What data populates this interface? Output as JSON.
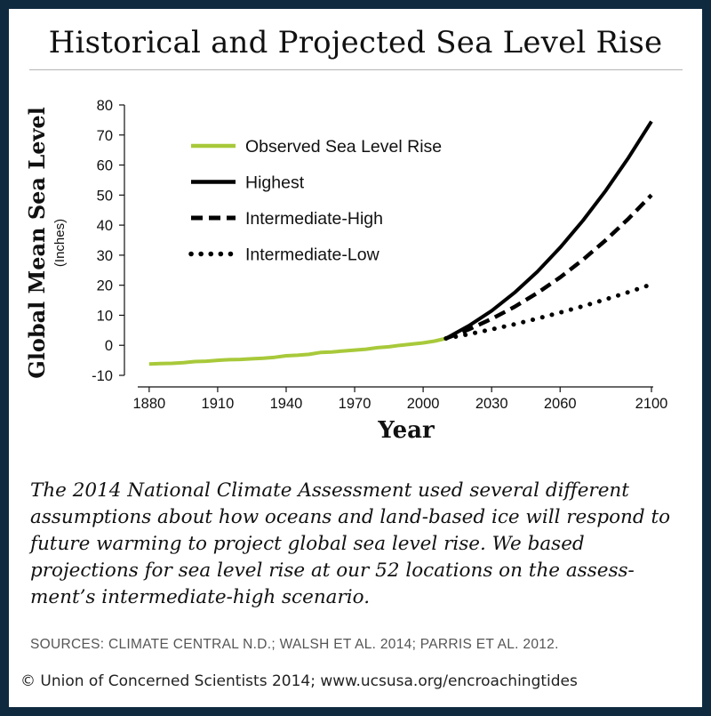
{
  "page": {
    "title": "Historical and Projected Sea Level Rise",
    "caption": "The 2014 National Climate Assessment used several different assumptions about how oceans and land-based ice will respond to future warming to project global sea level rise. We based projections for sea level rise at our 52 locations on the assess-ment’s intermediate-high scenario.",
    "sources": "SOURCES: CLIMATE CENTRAL N.D.; WALSH ET AL. 2014; PARRIS ET AL. 2012.",
    "copyright": "© Union of Concerned Scientists 2014; www.ucsusa.org/encroachingtides",
    "background_color": "#0f2a3f"
  },
  "chart_data": {
    "type": "line",
    "xlabel": "Year",
    "ylabel": "Global Mean Sea Level",
    "ylabel_unit": "(Inches)",
    "xlim": [
      1875,
      2100
    ],
    "ylim": [
      -10,
      80
    ],
    "xticks": [
      1880,
      1910,
      1940,
      1970,
      2000,
      2030,
      2060,
      2100
    ],
    "yticks": [
      -10,
      0,
      10,
      20,
      30,
      40,
      50,
      60,
      70,
      80
    ],
    "grid": false,
    "legend_position": "top-left",
    "series": [
      {
        "name": "Observed Sea Level Rise",
        "color": "#a8c93a",
        "style": "solid",
        "x": [
          1880,
          1885,
          1890,
          1895,
          1900,
          1905,
          1910,
          1915,
          1920,
          1925,
          1930,
          1935,
          1940,
          1945,
          1950,
          1955,
          1960,
          1965,
          1970,
          1975,
          1980,
          1985,
          1990,
          1995,
          2000,
          2005,
          2010
        ],
        "y": [
          -6.2,
          -6.1,
          -6.0,
          -5.8,
          -5.4,
          -5.3,
          -5.0,
          -4.8,
          -4.7,
          -4.5,
          -4.3,
          -4.0,
          -3.5,
          -3.3,
          -3.0,
          -2.4,
          -2.2,
          -1.9,
          -1.6,
          -1.3,
          -0.8,
          -0.5,
          0,
          0.4,
          0.8,
          1.4,
          2.3
        ]
      },
      {
        "name": "Highest",
        "color": "#000000",
        "style": "solid",
        "x": [
          2010,
          2020,
          2030,
          2040,
          2050,
          2060,
          2070,
          2080,
          2090,
          2100
        ],
        "y": [
          2.3,
          6.5,
          11.5,
          17.5,
          24.5,
          32.5,
          41.5,
          51.5,
          62.5,
          74.5
        ]
      },
      {
        "name": "Intermediate-High",
        "color": "#000000",
        "style": "dashed",
        "x": [
          2010,
          2020,
          2030,
          2040,
          2050,
          2060,
          2070,
          2080,
          2090,
          2100
        ],
        "y": [
          2.3,
          5.3,
          8.8,
          12.8,
          17.4,
          22.6,
          28.5,
          35.0,
          42.2,
          50.0
        ]
      },
      {
        "name": "Intermediate-Low",
        "color": "#000000",
        "style": "dotted",
        "x": [
          2010,
          2020,
          2030,
          2040,
          2050,
          2060,
          2070,
          2080,
          2090,
          2100
        ],
        "y": [
          2.3,
          3.7,
          5.3,
          7.0,
          8.9,
          10.9,
          13.0,
          15.3,
          17.7,
          20.3
        ]
      }
    ]
  }
}
